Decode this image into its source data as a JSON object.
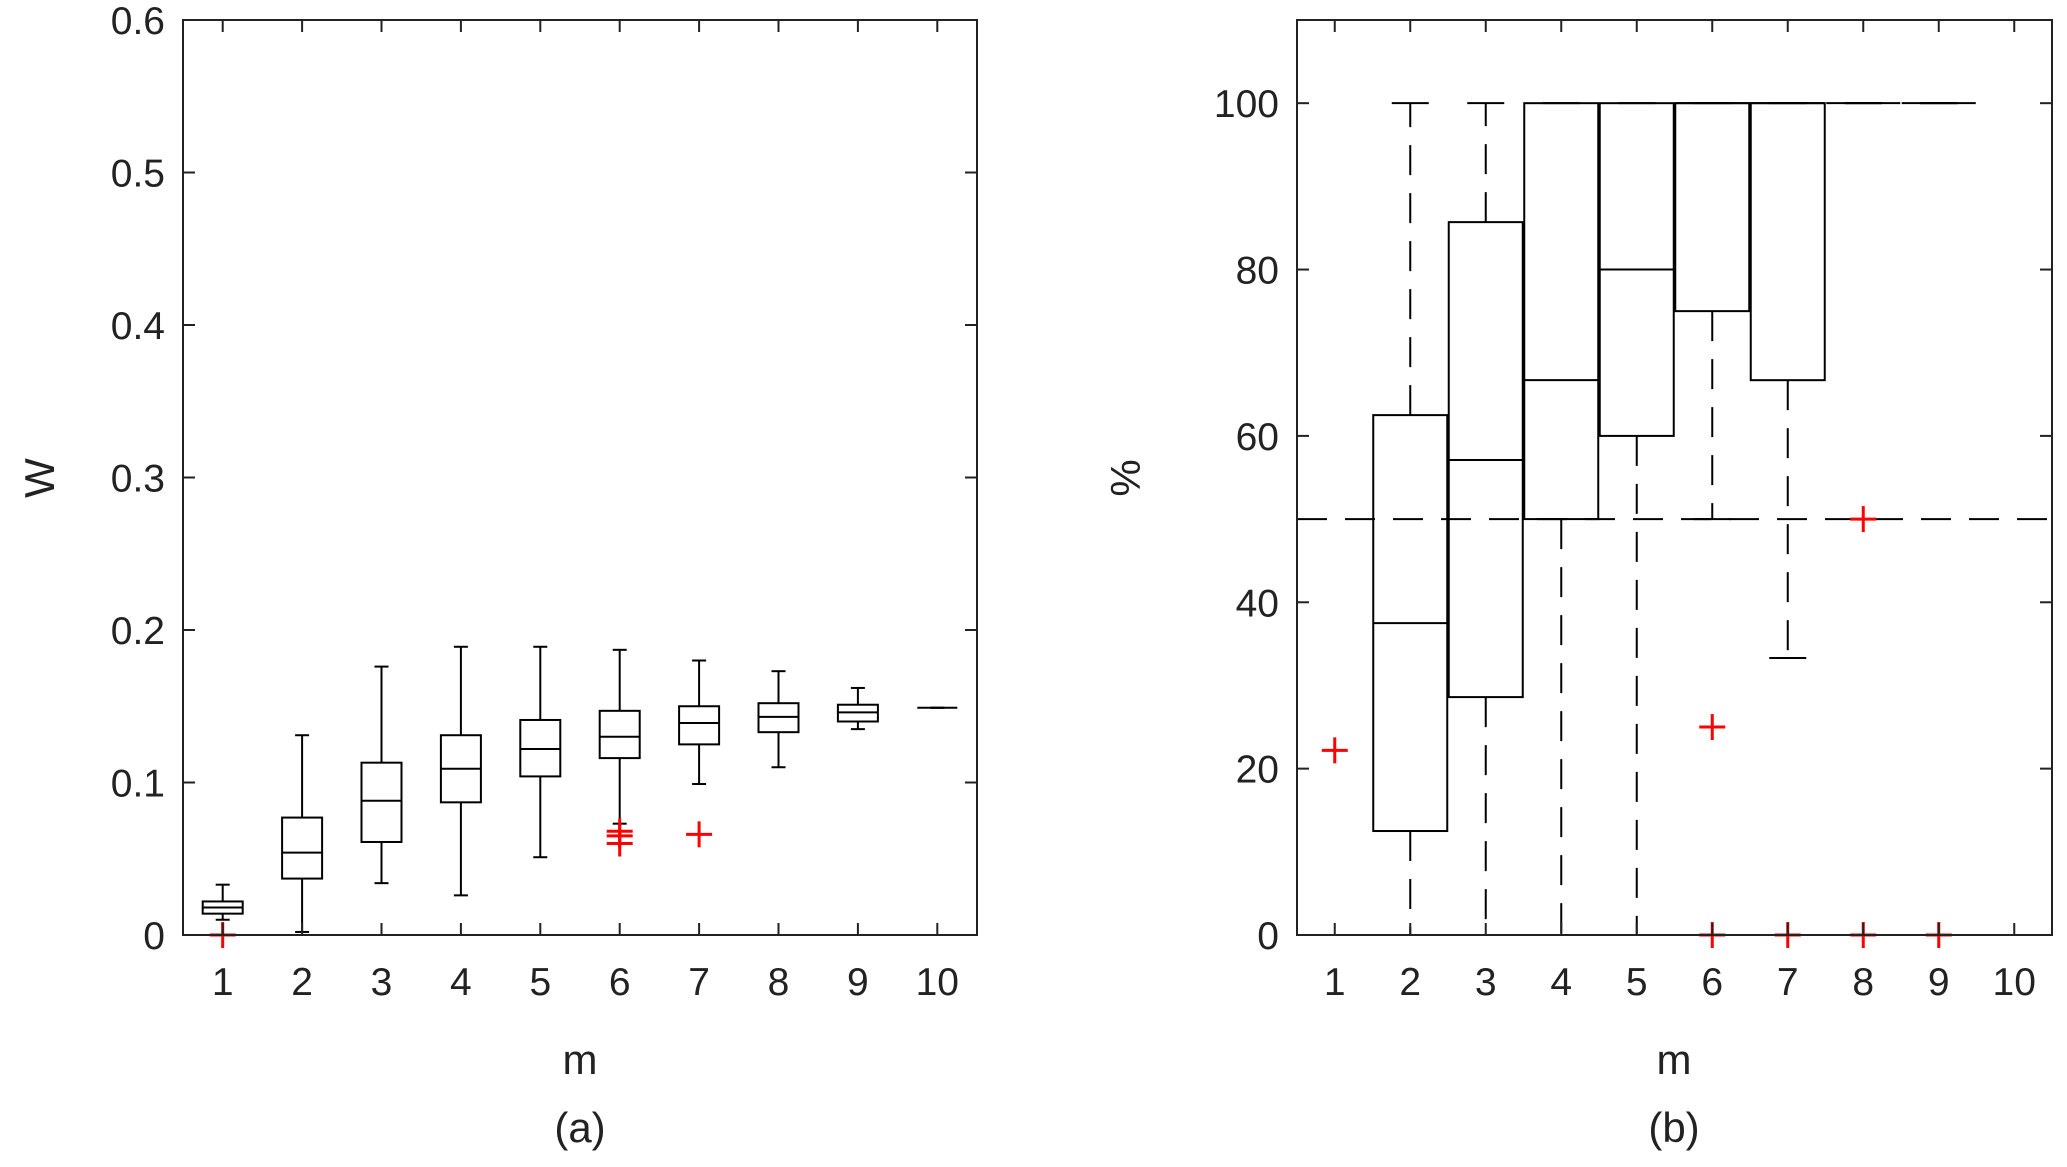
{
  "chart_data": [
    {
      "type": "box",
      "caption": "(a)",
      "xlabel": "m",
      "ylabel": "W",
      "categories": [
        "1",
        "2",
        "3",
        "4",
        "5",
        "6",
        "7",
        "8",
        "9",
        "10"
      ],
      "ylim": [
        0,
        0.6
      ],
      "yticks": [
        "0",
        "0.1",
        "0.2",
        "0.3",
        "0.4",
        "0.5",
        "0.6"
      ],
      "ytick_values": [
        0,
        0.1,
        0.2,
        0.3,
        0.4,
        0.5,
        0.6
      ],
      "boxes": [
        {
          "x": 1,
          "whisker_low": 0.01,
          "q1": 0.014,
          "median": 0.018,
          "q3": 0.022,
          "whisker_high": 0.033,
          "outliers": [
            0.0
          ]
        },
        {
          "x": 2,
          "whisker_low": 0.002,
          "q1": 0.037,
          "median": 0.054,
          "q3": 0.077,
          "whisker_high": 0.131,
          "outliers": []
        },
        {
          "x": 3,
          "whisker_low": 0.034,
          "q1": 0.061,
          "median": 0.088,
          "q3": 0.113,
          "whisker_high": 0.176,
          "outliers": []
        },
        {
          "x": 4,
          "whisker_low": 0.026,
          "q1": 0.087,
          "median": 0.109,
          "q3": 0.131,
          "whisker_high": 0.189,
          "outliers": []
        },
        {
          "x": 5,
          "whisker_low": 0.051,
          "q1": 0.104,
          "median": 0.122,
          "q3": 0.141,
          "whisker_high": 0.189,
          "outliers": []
        },
        {
          "x": 6,
          "whisker_low": 0.073,
          "q1": 0.116,
          "median": 0.13,
          "q3": 0.147,
          "whisker_high": 0.187,
          "outliers": [
            0.06,
            0.065,
            0.068
          ]
        },
        {
          "x": 7,
          "whisker_low": 0.099,
          "q1": 0.125,
          "median": 0.139,
          "q3": 0.15,
          "whisker_high": 0.18,
          "outliers": [
            0.066
          ]
        },
        {
          "x": 8,
          "whisker_low": 0.11,
          "q1": 0.133,
          "median": 0.143,
          "q3": 0.152,
          "whisker_high": 0.173,
          "outliers": []
        },
        {
          "x": 9,
          "whisker_low": 0.135,
          "q1": 0.14,
          "median": 0.146,
          "q3": 0.151,
          "whisker_high": 0.162,
          "outliers": []
        },
        {
          "x": 10,
          "whisker_low": 0.149,
          "q1": 0.149,
          "median": 0.149,
          "q3": 0.149,
          "whisker_high": 0.149,
          "outliers": []
        }
      ],
      "box_color": "#000000",
      "outlier_color": "#ff0000"
    },
    {
      "type": "box",
      "caption": "(b)",
      "xlabel": "m",
      "ylabel": "%",
      "categories": [
        "1",
        "2",
        "3",
        "4",
        "5",
        "6",
        "7",
        "8",
        "9",
        "10"
      ],
      "ylim": [
        0,
        110
      ],
      "yticks": [
        "0",
        "20",
        "40",
        "60",
        "80",
        "100"
      ],
      "ytick_values": [
        0,
        20,
        40,
        60,
        80,
        100
      ],
      "boxes": [
        {
          "x": 1,
          "whisker_low": 0,
          "q1": 0,
          "median": 0,
          "q3": 0,
          "whisker_high": 0,
          "outliers": [
            22.2
          ]
        },
        {
          "x": 2,
          "whisker_low": 0,
          "q1": 12.5,
          "median": 37.5,
          "q3": 62.5,
          "whisker_high": 100,
          "outliers": []
        },
        {
          "x": 3,
          "whisker_low": 0,
          "q1": 28.6,
          "median": 57.1,
          "q3": 85.7,
          "whisker_high": 100,
          "outliers": []
        },
        {
          "x": 4,
          "whisker_low": 0,
          "q1": 50,
          "median": 66.7,
          "q3": 100,
          "whisker_high": 100,
          "outliers": []
        },
        {
          "x": 5,
          "whisker_low": 0,
          "q1": 60,
          "median": 80,
          "q3": 100,
          "whisker_high": 100,
          "outliers": []
        },
        {
          "x": 6,
          "whisker_low": 50,
          "q1": 75,
          "median": 100,
          "q3": 100,
          "whisker_high": 100,
          "outliers": [
            25,
            0
          ]
        },
        {
          "x": 7,
          "whisker_low": 33.3,
          "q1": 66.7,
          "median": 100,
          "q3": 100,
          "whisker_high": 100,
          "outliers": [
            0
          ]
        },
        {
          "x": 8,
          "whisker_low": 100,
          "q1": 100,
          "median": 100,
          "q3": 100,
          "whisker_high": 100,
          "outliers": [
            50,
            0
          ]
        },
        {
          "x": 9,
          "whisker_low": 100,
          "q1": 100,
          "median": 100,
          "q3": 100,
          "whisker_high": 100,
          "outliers": [
            0
          ]
        },
        {
          "x": 10,
          "whisker_low": null,
          "q1": null,
          "median": null,
          "q3": null,
          "whisker_high": null,
          "outliers": []
        }
      ],
      "reference_line": {
        "y": 50,
        "style": "dashed"
      },
      "box_color": "#000000",
      "outlier_color": "#ff0000"
    }
  ]
}
